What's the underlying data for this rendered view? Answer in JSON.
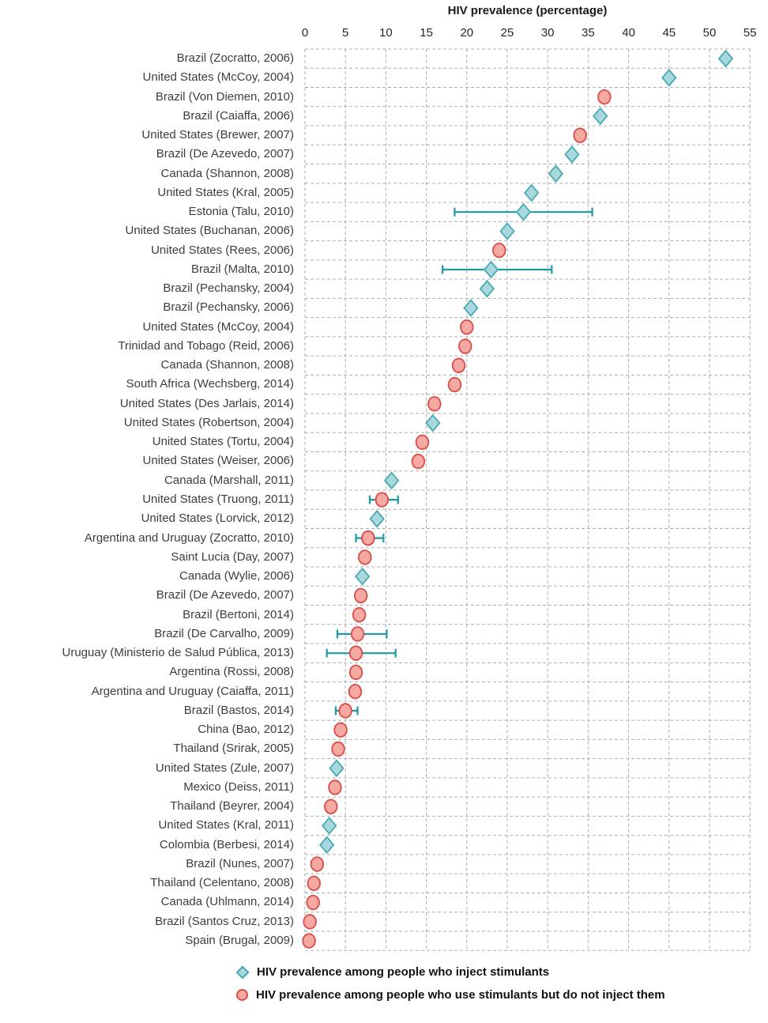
{
  "chart_data": {
    "type": "scatter",
    "title": "HIV prevalence (percentage)",
    "xlabel": "HIV prevalence (percentage)",
    "ylabel": "",
    "x_axis": {
      "min": 0,
      "max": 55,
      "tick_step": 5,
      "ticks": [
        0,
        5,
        10,
        15,
        20,
        25,
        30,
        35,
        40,
        45,
        50,
        55
      ]
    },
    "grid": "dashed",
    "legend_position": "bottom",
    "legend": [
      {
        "key": "inject",
        "marker": "diamond",
        "label": "HIV prevalence among people who inject stimulants",
        "fill": "#a8d7dc",
        "stroke": "#46aab5"
      },
      {
        "key": "noninject",
        "marker": "circle",
        "label": "HIV prevalence among people who use stimulants but do not inject them",
        "fill": "#f5a9a2",
        "stroke": "#dc4a45"
      }
    ],
    "colors": {
      "grid": "#adadad",
      "error_bar": "#1e99a3",
      "label_text": "#3d3d3d"
    },
    "rows": [
      {
        "label": "Brazil (Zocratto, 2006)",
        "group": "inject",
        "value": 52,
        "ci_low": null,
        "ci_high": null
      },
      {
        "label": "United States (McCoy, 2004)",
        "group": "inject",
        "value": 45,
        "ci_low": null,
        "ci_high": null
      },
      {
        "label": "Brazil (Von Diemen, 2010)",
        "group": "noninject",
        "value": 37,
        "ci_low": null,
        "ci_high": null
      },
      {
        "label": "Brazil (Caiaffa, 2006)",
        "group": "inject",
        "value": 36.5,
        "ci_low": null,
        "ci_high": null
      },
      {
        "label": "United States (Brewer, 2007)",
        "group": "noninject",
        "value": 34,
        "ci_low": null,
        "ci_high": null
      },
      {
        "label": "Brazil (De Azevedo, 2007)",
        "group": "inject",
        "value": 33,
        "ci_low": null,
        "ci_high": null
      },
      {
        "label": "Canada (Shannon, 2008)",
        "group": "inject",
        "value": 31,
        "ci_low": null,
        "ci_high": null
      },
      {
        "label": "United States (Kral, 2005)",
        "group": "inject",
        "value": 28,
        "ci_low": null,
        "ci_high": null
      },
      {
        "label": "Estonia (Talu, 2010)",
        "group": "inject",
        "value": 27,
        "ci_low": 18.5,
        "ci_high": 35.5
      },
      {
        "label": "United States (Buchanan, 2006)",
        "group": "inject",
        "value": 25,
        "ci_low": null,
        "ci_high": null
      },
      {
        "label": "United States (Rees, 2006)",
        "group": "noninject",
        "value": 24,
        "ci_low": null,
        "ci_high": null
      },
      {
        "label": "Brazil  (Malta, 2010)",
        "group": "inject",
        "value": 23,
        "ci_low": 17,
        "ci_high": 30.5
      },
      {
        "label": "Brazil  (Pechansky, 2004)",
        "group": "inject",
        "value": 22.5,
        "ci_low": null,
        "ci_high": null
      },
      {
        "label": "Brazil (Pechansky, 2006)",
        "group": "inject",
        "value": 20.5,
        "ci_low": null,
        "ci_high": null
      },
      {
        "label": "United States (McCoy, 2004)",
        "group": "noninject",
        "value": 20,
        "ci_low": null,
        "ci_high": null
      },
      {
        "label": "Trinidad and Tobago (Reid, 2006)",
        "group": "noninject",
        "value": 19.8,
        "ci_low": null,
        "ci_high": null
      },
      {
        "label": "Canada (Shannon, 2008)",
        "group": "noninject",
        "value": 19,
        "ci_low": null,
        "ci_high": null
      },
      {
        "label": "South Africa (Wechsberg, 2014)",
        "group": "noninject",
        "value": 18.5,
        "ci_low": null,
        "ci_high": null
      },
      {
        "label": "United States (Des Jarlais, 2014)",
        "group": "noninject",
        "value": 16,
        "ci_low": null,
        "ci_high": null
      },
      {
        "label": "United States (Robertson, 2004)",
        "group": "inject",
        "value": 15.8,
        "ci_low": null,
        "ci_high": null
      },
      {
        "label": "United States (Tortu, 2004)",
        "group": "noninject",
        "value": 14.5,
        "ci_low": null,
        "ci_high": null
      },
      {
        "label": "United States (Weiser, 2006)",
        "group": "noninject",
        "value": 14,
        "ci_low": null,
        "ci_high": null
      },
      {
        "label": "Canada (Marshall, 2011)",
        "group": "inject",
        "value": 10.7,
        "ci_low": null,
        "ci_high": null
      },
      {
        "label": "United States (Truong, 2011)",
        "group": "noninject",
        "value": 9.5,
        "ci_low": 8,
        "ci_high": 11.5
      },
      {
        "label": "United States (Lorvick, 2012)",
        "group": "inject",
        "value": 8.9,
        "ci_low": null,
        "ci_high": null
      },
      {
        "label": "Argentina and Uruguay (Zocratto, 2010)",
        "group": "noninject",
        "value": 7.8,
        "ci_low": 6.3,
        "ci_high": 9.7
      },
      {
        "label": "Saint Lucia (Day, 2007)",
        "group": "noninject",
        "value": 7.4,
        "ci_low": null,
        "ci_high": null
      },
      {
        "label": "Canada (Wylie, 2006)",
        "group": "inject",
        "value": 7.1,
        "ci_low": null,
        "ci_high": null
      },
      {
        "label": "Brazil (De Azevedo, 2007)",
        "group": "noninject",
        "value": 6.9,
        "ci_low": null,
        "ci_high": null
      },
      {
        "label": "Brazil (Bertoni, 2014)",
        "group": "noninject",
        "value": 6.7,
        "ci_low": null,
        "ci_high": null
      },
      {
        "label": "Brazil (De Carvalho, 2009)",
        "group": "noninject",
        "value": 6.5,
        "ci_low": 4,
        "ci_high": 10.1
      },
      {
        "label": "Uruguay (Ministerio de Salud Pública, 2013)",
        "group": "noninject",
        "value": 6.3,
        "ci_low": 2.7,
        "ci_high": 11.2
      },
      {
        "label": "Argentina (Rossi, 2008)",
        "group": "noninject",
        "value": 6.3,
        "ci_low": null,
        "ci_high": null
      },
      {
        "label": "Argentina and Uruguay (Caiaffa, 2011)",
        "group": "noninject",
        "value": 6.2,
        "ci_low": null,
        "ci_high": null
      },
      {
        "label": "Brazil (Bastos, 2014)",
        "group": "noninject",
        "value": 5,
        "ci_low": 3.8,
        "ci_high": 6.5
      },
      {
        "label": "China (Bao, 2012)",
        "group": "noninject",
        "value": 4.4,
        "ci_low": null,
        "ci_high": null
      },
      {
        "label": "Thailand (Srirak, 2005)",
        "group": "noninject",
        "value": 4.1,
        "ci_low": null,
        "ci_high": null
      },
      {
        "label": "United States (Zule, 2007)",
        "group": "inject",
        "value": 3.9,
        "ci_low": null,
        "ci_high": null
      },
      {
        "label": "Mexico (Deiss, 2011)",
        "group": "noninject",
        "value": 3.7,
        "ci_low": null,
        "ci_high": null
      },
      {
        "label": "Thailand (Beyrer, 2004)",
        "group": "noninject",
        "value": 3.2,
        "ci_low": null,
        "ci_high": null
      },
      {
        "label": "United States (Kral, 2011)",
        "group": "inject",
        "value": 3,
        "ci_low": null,
        "ci_high": null
      },
      {
        "label": "Colombia (Berbesi, 2014)",
        "group": "inject",
        "value": 2.7,
        "ci_low": null,
        "ci_high": null
      },
      {
        "label": "Brazil (Nunes, 2007)",
        "group": "noninject",
        "value": 1.5,
        "ci_low": null,
        "ci_high": null
      },
      {
        "label": "Thailand (Celentano, 2008)",
        "group": "noninject",
        "value": 1.1,
        "ci_low": null,
        "ci_high": null
      },
      {
        "label": "Canada (Uhlmann, 2014)",
        "group": "noninject",
        "value": 1,
        "ci_low": null,
        "ci_high": null
      },
      {
        "label": "Brazil (Santos Cruz, 2013)",
        "group": "noninject",
        "value": 0.6,
        "ci_low": null,
        "ci_high": null
      },
      {
        "label": "Spain (Brugal, 2009)",
        "group": "noninject",
        "value": 0.5,
        "ci_low": null,
        "ci_high": null
      }
    ]
  }
}
